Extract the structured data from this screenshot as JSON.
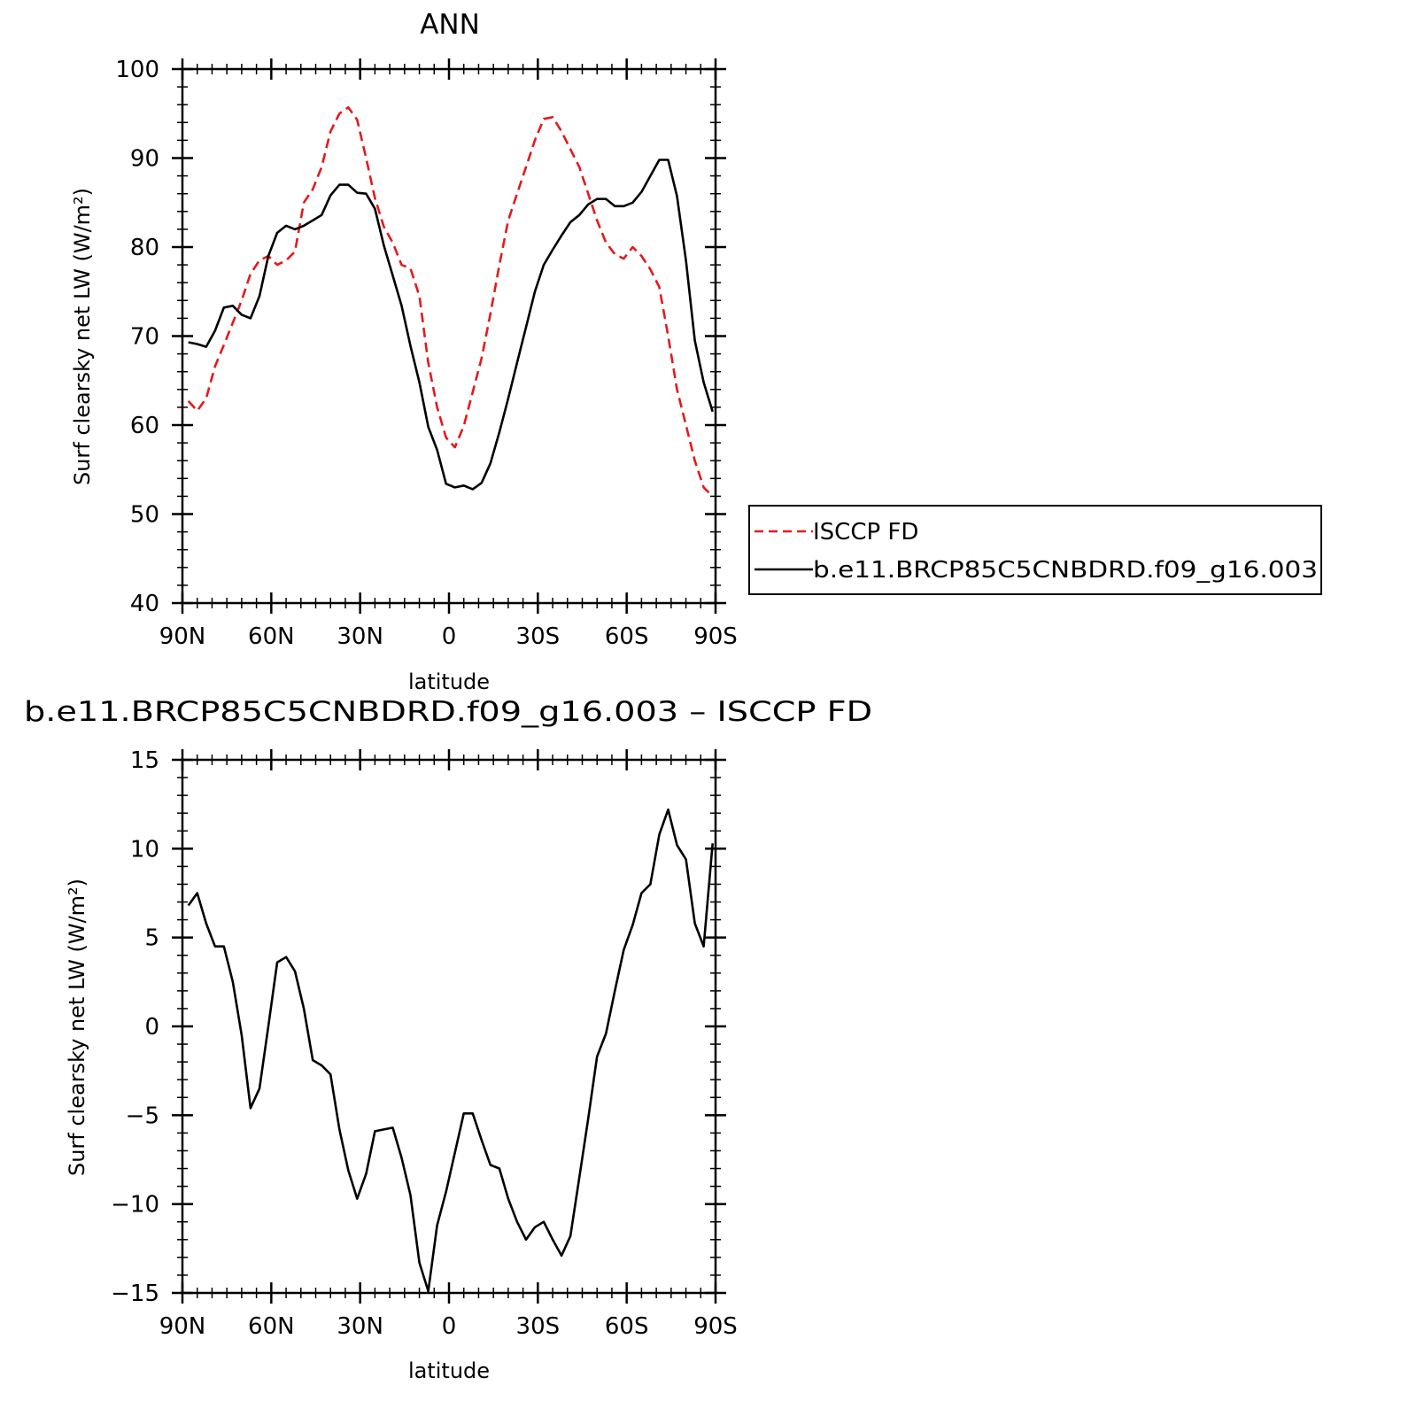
{
  "chart_data": [
    {
      "type": "line",
      "title": "ANN",
      "xlabel": "latitude",
      "ylabel": "Surf clearsky net LW (W/m²)",
      "ylim": [
        40,
        100
      ],
      "xlim": [
        -90,
        90
      ],
      "xdirection": "north-to-south",
      "xticks": [
        {
          "value": -90,
          "label": "90N"
        },
        {
          "value": -60,
          "label": "60N"
        },
        {
          "value": -30,
          "label": "30N"
        },
        {
          "value": 0,
          "label": "0"
        },
        {
          "value": 30,
          "label": "30S"
        },
        {
          "value": 60,
          "label": "60S"
        },
        {
          "value": 90,
          "label": "90S"
        }
      ],
      "yticks": [
        40,
        50,
        60,
        70,
        80,
        90,
        100
      ],
      "grid": false,
      "legend": "right",
      "series": [
        {
          "name": "ISCCP FD",
          "color": "#e41a1c",
          "dash": "dashed",
          "x": [
            -88,
            -85,
            -82,
            -79,
            -76,
            -73,
            -70,
            -67,
            -64,
            -61,
            -58,
            -55,
            -52,
            -49,
            -46,
            -43,
            -40,
            -37,
            -34,
            -31,
            -28,
            -25,
            -22,
            -19,
            -16,
            -13,
            -10,
            -7,
            -4,
            -1,
            2,
            5,
            8,
            11,
            14,
            17,
            20,
            23,
            26,
            29,
            32,
            35,
            38,
            41,
            44,
            47,
            50,
            53,
            56,
            59,
            62,
            65,
            68,
            71,
            74,
            77,
            80,
            83,
            86,
            89
          ],
          "y": [
            62.7,
            61.6,
            63.0,
            66.6,
            69.0,
            71.5,
            74.0,
            77.0,
            78.5,
            79.0,
            78.0,
            78.5,
            79.5,
            85.0,
            86.5,
            89.0,
            93.0,
            95.0,
            95.7,
            94.3,
            90.0,
            85.5,
            82.3,
            80.5,
            78.0,
            77.6,
            74.5,
            67.0,
            62.0,
            58.6,
            57.5,
            59.9,
            63.7,
            67.5,
            72.5,
            78.0,
            83.0,
            86.0,
            89.0,
            92.0,
            94.4,
            94.6,
            93.0,
            91.0,
            89.0,
            86.0,
            83.0,
            80.5,
            79.2,
            78.7,
            80.0,
            79.0,
            77.5,
            75.5,
            70.0,
            64.0,
            60.0,
            56.0,
            53.0,
            52.0
          ]
        },
        {
          "name": "b.e11.BRCP85C5CNBDRD.f09_g16.003",
          "color": "#000000",
          "dash": "solid",
          "x": [
            -88,
            -85,
            -82,
            -79,
            -76,
            -73,
            -70,
            -67,
            -64,
            -61,
            -58,
            -55,
            -52,
            -49,
            -46,
            -43,
            -40,
            -37,
            -34,
            -31,
            -28,
            -25,
            -22,
            -19,
            -16,
            -13,
            -10,
            -7,
            -4,
            -1,
            2,
            5,
            8,
            11,
            14,
            17,
            20,
            23,
            26,
            29,
            32,
            35,
            38,
            41,
            44,
            47,
            50,
            53,
            56,
            59,
            62,
            65,
            68,
            71,
            74,
            77,
            80,
            83,
            86,
            89
          ],
          "y": [
            69.3,
            69.1,
            68.8,
            70.6,
            73.2,
            73.4,
            72.4,
            72.0,
            74.5,
            79.0,
            81.6,
            82.4,
            82.0,
            82.4,
            83.0,
            83.6,
            85.8,
            87.0,
            87.0,
            86.1,
            86.0,
            84.3,
            80.2,
            76.8,
            73.4,
            68.9,
            64.8,
            59.8,
            57.2,
            53.4,
            53.0,
            53.2,
            52.8,
            53.5,
            55.7,
            59.2,
            63.0,
            67.0,
            71.0,
            75.0,
            78.0,
            79.7,
            81.3,
            82.8,
            83.6,
            84.8,
            85.4,
            85.4,
            84.6,
            84.6,
            85.0,
            86.2,
            88.0,
            89.8,
            89.8,
            85.7,
            78.5,
            69.5,
            64.8,
            61.5
          ]
        }
      ]
    },
    {
      "type": "line",
      "title": "b.e11.BRCP85C5CNBDRD.f09_g16.003 – ISCCP FD",
      "xlabel": "latitude",
      "ylabel": "Surf clearsky net LW (W/m²)",
      "ylim": [
        -15,
        15
      ],
      "xlim": [
        -90,
        90
      ],
      "xdirection": "north-to-south",
      "xticks": [
        {
          "value": -90,
          "label": "90N"
        },
        {
          "value": -60,
          "label": "60N"
        },
        {
          "value": -30,
          "label": "30N"
        },
        {
          "value": 0,
          "label": "0"
        },
        {
          "value": 30,
          "label": "30S"
        },
        {
          "value": 60,
          "label": "60S"
        },
        {
          "value": 90,
          "label": "90S"
        }
      ],
      "yticks": [
        -15,
        -10,
        -5,
        0,
        5,
        10,
        15
      ],
      "grid": false,
      "legend": "none",
      "series": [
        {
          "color": "#000000",
          "dash": "solid",
          "x": [
            -88,
            -85,
            -82,
            -79,
            -76,
            -73,
            -70,
            -67,
            -64,
            -61,
            -58,
            -55,
            -52,
            -49,
            -46,
            -43,
            -40,
            -37,
            -34,
            -31,
            -28,
            -25,
            -22,
            -19,
            -16,
            -13,
            -10,
            -7,
            -4,
            -1,
            2,
            5,
            8,
            11,
            14,
            17,
            20,
            23,
            26,
            29,
            32,
            35,
            38,
            41,
            44,
            47,
            50,
            53,
            56,
            59,
            62,
            65,
            68,
            71,
            74,
            77,
            80,
            83,
            86,
            89
          ],
          "y": [
            6.8,
            7.5,
            5.8,
            4.5,
            4.5,
            2.5,
            -0.5,
            -4.6,
            -3.5,
            0.0,
            3.6,
            3.9,
            3.1,
            1.0,
            -1.9,
            -2.2,
            -2.7,
            -5.8,
            -8.1,
            -9.7,
            -8.3,
            -5.9,
            -5.8,
            -5.7,
            -7.4,
            -9.5,
            -13.3,
            -14.9,
            -11.2,
            -9.3,
            -7.1,
            -4.9,
            -4.9,
            -6.4,
            -7.8,
            -8.0,
            -9.7,
            -11.0,
            -12.0,
            -11.3,
            -11.0,
            -12.0,
            -12.9,
            -11.8,
            -8.5,
            -5.2,
            -1.7,
            -0.4,
            2.0,
            4.3,
            5.7,
            7.5,
            8.0,
            10.8,
            12.2,
            10.2,
            9.4,
            5.8,
            4.5,
            10.3
          ]
        }
      ]
    }
  ]
}
